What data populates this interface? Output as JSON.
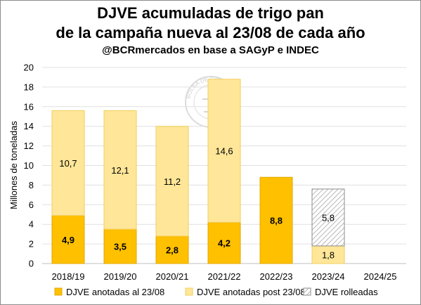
{
  "chart_data": {
    "type": "bar",
    "stacked": true,
    "title": "DJVE acumuladas de trigo pan",
    "title_line2": "de la campaña nueva al 23/08 de cada año",
    "subtitle": "@BCRmercados en base a SAGyP e INDEC",
    "ylabel": "Millones de toneladas",
    "xlabel": "",
    "ylim": [
      0,
      20
    ],
    "yticks": [
      0,
      2,
      4,
      6,
      8,
      10,
      12,
      14,
      16,
      18,
      20
    ],
    "ytick_labels": [
      "0",
      "2",
      "4",
      "6",
      "8",
      "10",
      "12",
      "14",
      "16",
      "18",
      "20"
    ],
    "grid": true,
    "legend_position": "bottom",
    "categories": [
      "2018/19",
      "2019/20",
      "2020/21",
      "2021/22",
      "2022/23",
      "2023/24",
      "2024/25"
    ],
    "series": [
      {
        "name": "DJVE anotadas al 23/08",
        "color": "#ffc000",
        "values": [
          4.9,
          3.5,
          2.8,
          4.2,
          8.8,
          0,
          0
        ],
        "labels": [
          "4,9",
          "3,5",
          "2,8",
          "4,2",
          "8,8",
          "",
          ""
        ]
      },
      {
        "name": "DJVE anotadas post 23/08",
        "color": "#ffe699",
        "values": [
          10.7,
          12.1,
          11.2,
          14.6,
          0,
          1.8,
          0
        ],
        "labels": [
          "10,7",
          "12,1",
          "11,2",
          "14,6",
          "",
          "1,8",
          ""
        ]
      },
      {
        "name": "DJVE rolleadas",
        "color": "#d9d9d9",
        "pattern": "hatched",
        "values": [
          0,
          0,
          0,
          0,
          0,
          5.8,
          0
        ],
        "labels": [
          "",
          "",
          "",
          "",
          "",
          "5,8",
          ""
        ]
      }
    ],
    "watermark": "BOLSA DE COMERCIO"
  }
}
